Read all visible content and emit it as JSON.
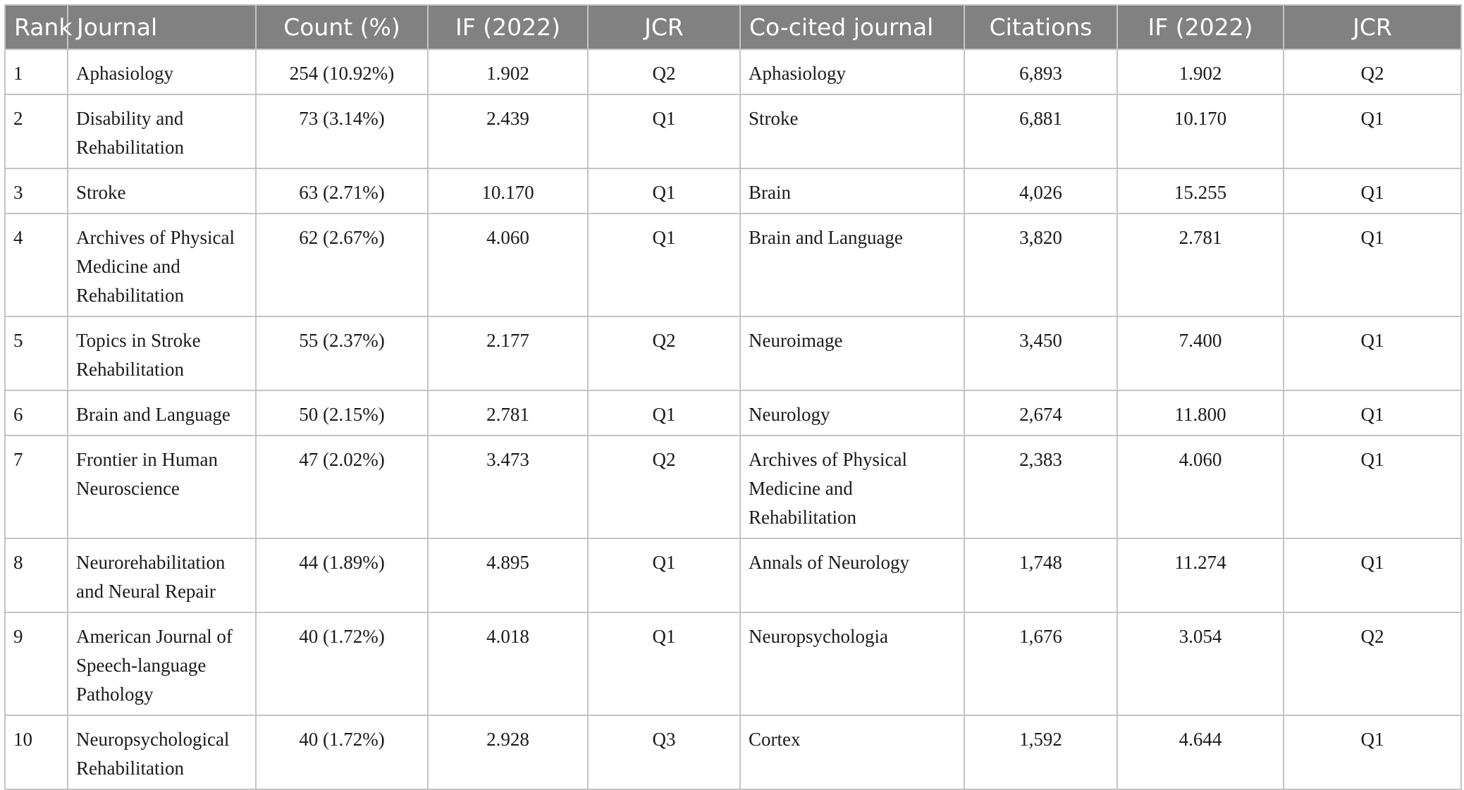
{
  "headers": [
    "Rank",
    "Journal",
    "Count (%)",
    "IF (2022)",
    "JCR",
    "Co-cited journal",
    "Citations",
    "IF (2022)",
    "JCR"
  ],
  "rows": [
    {
      "rank": "1",
      "journal": "Aphasiology",
      "count": "254 (10.92%)",
      "if1": "1.902",
      "jcr1": "Q2",
      "cocited": "Aphasiology",
      "citations": "6,893",
      "if2": "1.902",
      "jcr2": "Q2"
    },
    {
      "rank": "2",
      "journal": "Disability and Rehabilitation",
      "count": "73 (3.14%)",
      "if1": "2.439",
      "jcr1": "Q1",
      "cocited": "Stroke",
      "citations": "6,881",
      "if2": "10.170",
      "jcr2": "Q1"
    },
    {
      "rank": "3",
      "journal": "Stroke",
      "count": "63 (2.71%)",
      "if1": "10.170",
      "jcr1": "Q1",
      "cocited": "Brain",
      "citations": "4,026",
      "if2": "15.255",
      "jcr2": "Q1"
    },
    {
      "rank": "4",
      "journal": "Archives of Physical Medicine and Rehabilitation",
      "count": "62 (2.67%)",
      "if1": "4.060",
      "jcr1": "Q1",
      "cocited": "Brain and Language",
      "citations": "3,820",
      "if2": "2.781",
      "jcr2": "Q1"
    },
    {
      "rank": "5",
      "journal": "Topics in Stroke Rehabilitation",
      "count": "55 (2.37%)",
      "if1": "2.177",
      "jcr1": "Q2",
      "cocited": "Neuroimage",
      "citations": "3,450",
      "if2": "7.400",
      "jcr2": "Q1"
    },
    {
      "rank": "6",
      "journal": "Brain and Language",
      "count": "50 (2.15%)",
      "if1": "2.781",
      "jcr1": "Q1",
      "cocited": "Neurology",
      "citations": "2,674",
      "if2": "11.800",
      "jcr2": "Q1"
    },
    {
      "rank": "7",
      "journal": "Frontier in Human Neuroscience",
      "count": "47 (2.02%)",
      "if1": "3.473",
      "jcr1": "Q2",
      "cocited": "Archives of Physical Medicine and Rehabilitation",
      "citations": "2,383",
      "if2": "4.060",
      "jcr2": "Q1"
    },
    {
      "rank": "8",
      "journal": "Neurorehabilitation and Neural Repair",
      "count": "44 (1.89%)",
      "if1": "4.895",
      "jcr1": "Q1",
      "cocited": "Annals of Neurology",
      "citations": "1,748",
      "if2": "11.274",
      "jcr2": "Q1"
    },
    {
      "rank": "9",
      "journal": "American Journal of Speech-language Pathology",
      "count": "40 (1.72%)",
      "if1": "4.018",
      "jcr1": "Q1",
      "cocited": "Neuropsychologia",
      "citations": "1,676",
      "if2": "3.054",
      "jcr2": "Q2"
    },
    {
      "rank": "10",
      "journal": "Neuropsychological Rehabilitation",
      "count": "40 (1.72%)",
      "if1": "2.928",
      "jcr1": "Q3",
      "cocited": "Cortex",
      "citations": "1,592",
      "if2": "4.644",
      "jcr2": "Q1"
    }
  ]
}
